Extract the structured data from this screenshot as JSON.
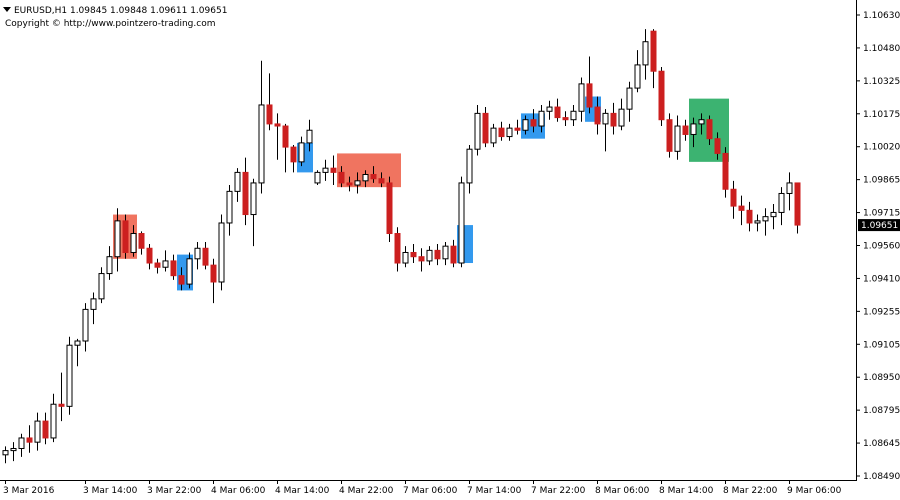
{
  "header": {
    "symbol_line": "EURUSD,H1  1.09845 1.09848 1.09611 1.09651",
    "copyright": "Copyright © http://www.pointzero-trading.com"
  },
  "chart_data": {
    "type": "candlestick",
    "symbol": "EURUSD",
    "timeframe": "H1",
    "ohlc_header": {
      "open": 1.09845,
      "high": 1.09848,
      "low": 1.09611,
      "close": 1.09651
    },
    "current_price": "1.09651",
    "ylim": [
      1.0845,
      1.1068
    ],
    "y_ticks": [
      "1.10630",
      "1.10480",
      "1.10325",
      "1.10175",
      "1.10020",
      "1.09865",
      "1.09715",
      "1.09560",
      "1.09410",
      "1.09255",
      "1.09105",
      "1.08950",
      "1.08795",
      "1.08645",
      "1.08490"
    ],
    "x_ticks": [
      {
        "label": "3 Mar 2016",
        "bar": 0
      },
      {
        "label": "3 Mar 14:00",
        "bar": 10
      },
      {
        "label": "3 Mar 22:00",
        "bar": 18
      },
      {
        "label": "4 Mar 06:00",
        "bar": 26
      },
      {
        "label": "4 Mar 14:00",
        "bar": 34
      },
      {
        "label": "4 Mar 22:00",
        "bar": 42
      },
      {
        "label": "7 Mar 06:00",
        "bar": 50
      },
      {
        "label": "7 Mar 14:00",
        "bar": 58
      },
      {
        "label": "7 Mar 22:00",
        "bar": 66
      },
      {
        "label": "8 Mar 06:00",
        "bar": 74
      },
      {
        "label": "8 Mar 14:00",
        "bar": 82
      },
      {
        "label": "8 Mar 22:00",
        "bar": 90
      },
      {
        "label": "9 Mar 06:00",
        "bar": 98
      }
    ],
    "candles": [
      [
        1.0856,
        1.086,
        1.0852,
        1.0858
      ],
      [
        1.0858,
        1.0862,
        1.0853,
        1.0859
      ],
      [
        1.0859,
        1.0866,
        1.0855,
        1.0864
      ],
      [
        1.0864,
        1.087,
        1.0857,
        1.0862
      ],
      [
        1.0862,
        1.0876,
        1.0858,
        1.0872
      ],
      [
        1.0872,
        1.0876,
        1.0861,
        1.0864
      ],
      [
        1.0864,
        1.0885,
        1.0862,
        1.088
      ],
      [
        1.088,
        1.0895,
        1.0872,
        1.0879
      ],
      [
        1.0879,
        1.0912,
        1.0875,
        1.0908
      ],
      [
        1.0908,
        1.0911,
        1.0898,
        1.091
      ],
      [
        1.091,
        1.0928,
        1.0905,
        1.0925
      ],
      [
        1.0925,
        1.0933,
        1.0918,
        1.093
      ],
      [
        1.093,
        1.0945,
        1.0928,
        1.0942
      ],
      [
        1.0942,
        1.0955,
        1.0939,
        1.095
      ],
      [
        1.095,
        1.0973,
        1.0943,
        1.0967
      ],
      [
        1.0967,
        1.097,
        1.0949,
        1.0952
      ],
      [
        1.0952,
        1.0965,
        1.095,
        1.0961
      ],
      [
        1.0961,
        1.0962,
        1.0951,
        1.0954
      ],
      [
        1.0954,
        1.0956,
        1.0944,
        1.0947
      ],
      [
        1.0947,
        1.0949,
        1.0942,
        1.0945
      ],
      [
        1.0945,
        1.0953,
        1.0943,
        1.0948
      ],
      [
        1.0948,
        1.0951,
        1.0939,
        1.0941
      ],
      [
        1.0941,
        1.0945,
        1.0934,
        1.0937
      ],
      [
        1.0937,
        1.0952,
        1.0935,
        1.0949
      ],
      [
        1.0949,
        1.0957,
        1.0944,
        1.0954
      ],
      [
        1.0954,
        1.0957,
        1.0944,
        1.0946
      ],
      [
        1.0946,
        1.0949,
        1.0928,
        1.0938
      ],
      [
        1.0938,
        1.097,
        1.0934,
        1.0966
      ],
      [
        1.0966,
        1.0984,
        1.096,
        1.0981
      ],
      [
        1.0981,
        1.0992,
        1.0976,
        1.099
      ],
      [
        1.099,
        1.0997,
        1.0965,
        1.097
      ],
      [
        1.097,
        1.0987,
        1.0955,
        1.0985
      ],
      [
        1.0985,
        1.1043,
        1.098,
        1.1022
      ],
      [
        1.1022,
        1.1037,
        1.101,
        1.1013
      ],
      [
        1.1013,
        1.1018,
        1.0996,
        1.1012
      ],
      [
        1.1012,
        1.1013,
        1.099,
        1.1002
      ],
      [
        1.1002,
        1.1003,
        1.099,
        1.0995
      ],
      [
        1.0995,
        1.1007,
        1.0993,
        1.1004
      ],
      [
        1.1004,
        1.1015,
        1.1,
        1.101
      ],
      [
        1.0985,
        1.0991,
        1.0984,
        1.099
      ],
      [
        1.099,
        1.0996,
        1.0986,
        1.0992
      ],
      [
        1.0992,
        1.0998,
        1.0984,
        1.099
      ],
      [
        1.099,
        1.0993,
        1.0983,
        1.0985
      ],
      [
        1.0985,
        1.0988,
        1.0981,
        1.0984
      ],
      [
        1.0984,
        1.099,
        1.098,
        1.0986
      ],
      [
        1.0986,
        1.0991,
        1.0983,
        1.0989
      ],
      [
        1.0989,
        1.0993,
        1.0985,
        1.0987
      ],
      [
        1.0987,
        1.099,
        1.0983,
        1.0985
      ],
      [
        1.0985,
        1.0988,
        1.0957,
        1.0961
      ],
      [
        1.0961,
        1.0964,
        1.0943,
        1.0947
      ],
      [
        1.0947,
        1.0955,
        1.0945,
        1.0952
      ],
      [
        1.0952,
        1.0956,
        1.0947,
        1.095
      ],
      [
        1.095,
        1.0954,
        1.0943,
        1.0948
      ],
      [
        1.0948,
        1.0955,
        1.0946,
        1.0953
      ],
      [
        1.0953,
        1.0956,
        1.0946,
        1.0949
      ],
      [
        1.0949,
        1.0957,
        1.0946,
        1.0955
      ],
      [
        1.0955,
        1.0958,
        1.0945,
        1.0947
      ],
      [
        1.0947,
        1.0988,
        1.0945,
        1.0985
      ],
      [
        1.0985,
        1.1003,
        1.098,
        1.1001
      ],
      [
        1.1001,
        1.1022,
        1.0998,
        1.1018
      ],
      [
        1.1018,
        1.1021,
        1.1002,
        1.1004
      ],
      [
        1.1004,
        1.1013,
        1.1002,
        1.1011
      ],
      [
        1.1011,
        1.1014,
        1.1005,
        1.1007
      ],
      [
        1.1007,
        1.1013,
        1.1005,
        1.1011
      ],
      [
        1.1011,
        1.1015,
        1.1008,
        1.101
      ],
      [
        1.101,
        1.1017,
        1.1008,
        1.1015
      ],
      [
        1.1015,
        1.102,
        1.1009,
        1.1012
      ],
      [
        1.1012,
        1.1022,
        1.1009,
        1.1019
      ],
      [
        1.1019,
        1.1024,
        1.1015,
        1.1021
      ],
      [
        1.1021,
        1.1025,
        1.1014,
        1.1016
      ],
      [
        1.1016,
        1.1019,
        1.1012,
        1.1015
      ],
      [
        1.1015,
        1.1022,
        1.1012,
        1.1019
      ],
      [
        1.1019,
        1.1035,
        1.1014,
        1.1032
      ],
      [
        1.1032,
        1.1045,
        1.1018,
        1.1021
      ],
      [
        1.1021,
        1.1026,
        1.1008,
        1.1013
      ],
      [
        1.1013,
        1.102,
        1.1,
        1.1018
      ],
      [
        1.1018,
        1.1023,
        1.1008,
        1.1012
      ],
      [
        1.1012,
        1.1025,
        1.101,
        1.102
      ],
      [
        1.102,
        1.1033,
        1.1014,
        1.103
      ],
      [
        1.103,
        1.1048,
        1.1028,
        1.1041
      ],
      [
        1.1041,
        1.1058,
        1.1034,
        1.1052
      ],
      [
        1.1057,
        1.1058,
        1.103,
        1.1038
      ],
      [
        1.1038,
        1.104,
        1.1012,
        1.1015
      ],
      [
        1.1015,
        1.1018,
        1.0997,
        1.1
      ],
      [
        1.1,
        1.1017,
        1.0996,
        1.1012
      ],
      [
        1.1012,
        1.1015,
        1.1005,
        1.1008
      ],
      [
        1.1008,
        1.1016,
        1.1002,
        1.1013
      ],
      [
        1.1013,
        1.1018,
        1.1008,
        1.1015
      ],
      [
        1.1015,
        1.1017,
        1.1003,
        1.1006
      ],
      [
        1.1006,
        1.1009,
        1.0996,
        1.0999
      ],
      [
        1.0999,
        1.1002,
        1.0978,
        1.0982
      ],
      [
        1.0982,
        1.0986,
        1.0968,
        1.0974
      ],
      [
        1.0974,
        1.0979,
        1.0965,
        1.0972
      ],
      [
        1.0972,
        1.0976,
        1.0962,
        1.0966
      ],
      [
        1.0966,
        1.097,
        1.0962,
        1.0967
      ],
      [
        1.0967,
        1.0973,
        1.096,
        1.0969
      ],
      [
        1.0969,
        1.0975,
        1.0963,
        1.0971
      ],
      [
        1.0971,
        1.0983,
        1.0965,
        1.098
      ],
      [
        1.098,
        1.099,
        1.0972,
        1.0985
      ],
      [
        1.0985,
        1.0985,
        1.0961,
        1.0965
      ]
    ],
    "zones": [
      {
        "from": 14,
        "to": 16,
        "low": 1.0949,
        "high": 1.097,
        "color": "#f07460"
      },
      {
        "from": 22,
        "to": 23,
        "low": 1.0934,
        "high": 1.0951,
        "color": "#3399ee"
      },
      {
        "from": 37,
        "to": 38,
        "low": 1.099,
        "high": 1.1004,
        "color": "#3399ee"
      },
      {
        "from": 42,
        "to": 49,
        "low": 1.0983,
        "high": 1.0999,
        "color": "#f07460"
      },
      {
        "from": 57,
        "to": 58,
        "low": 1.0947,
        "high": 1.0965,
        "color": "#3399ee"
      },
      {
        "from": 65,
        "to": 67,
        "low": 1.1006,
        "high": 1.1018,
        "color": "#3399ee"
      },
      {
        "from": 73,
        "to": 74,
        "low": 1.1014,
        "high": 1.1026,
        "color": "#3399ee"
      },
      {
        "from": 86,
        "to": 90,
        "low": 1.0995,
        "high": 1.1025,
        "color": "#3cb371"
      }
    ],
    "colors": {
      "bull_body": "#ffffff",
      "bear_body": "#cc1f1f",
      "wick": "#000000",
      "price_box": "#000000",
      "price_text": "#ffffff"
    }
  }
}
